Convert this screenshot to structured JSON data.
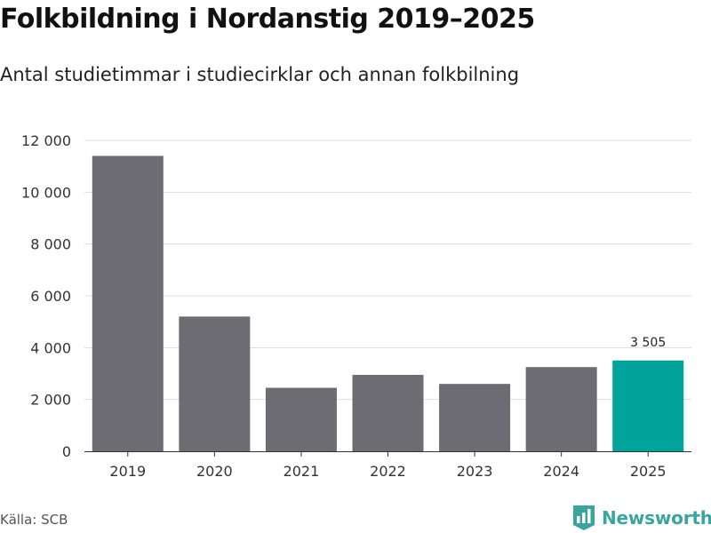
{
  "title": "Folkbildning i Nordanstig 2019–2025",
  "subtitle": "Antal studietimmar i studiecirklar och annan folkbilning",
  "source": "Källa: SCB",
  "brand": {
    "name": "Newsworthy",
    "icon": "bar-chart-flag-icon",
    "color": "#3aa5a0"
  },
  "colors": {
    "bar": "#6d6c72",
    "highlight": "#00a49a",
    "grid": "#dddddd",
    "axis": "#333333"
  },
  "chart_data": {
    "type": "bar",
    "title": "Folkbildning i Nordanstig 2019–2025",
    "subtitle": "Antal studietimmar i studiecirklar och annan folkbilning",
    "xlabel": "",
    "ylabel": "",
    "categories": [
      "2019",
      "2020",
      "2021",
      "2022",
      "2023",
      "2024",
      "2025"
    ],
    "values": [
      11400,
      5200,
      2450,
      2950,
      2600,
      3250,
      3505
    ],
    "highlight_index": 6,
    "data_labels": [
      {
        "index": 6,
        "text": "3 505"
      }
    ],
    "ylim": [
      0,
      12000
    ],
    "yticks": [
      0,
      2000,
      4000,
      6000,
      8000,
      10000,
      12000
    ],
    "ytick_labels": [
      "0",
      "2 000",
      "4 000",
      "6 000",
      "8 000",
      "10 000",
      "12 000"
    ],
    "grid": true,
    "legend": "none"
  }
}
